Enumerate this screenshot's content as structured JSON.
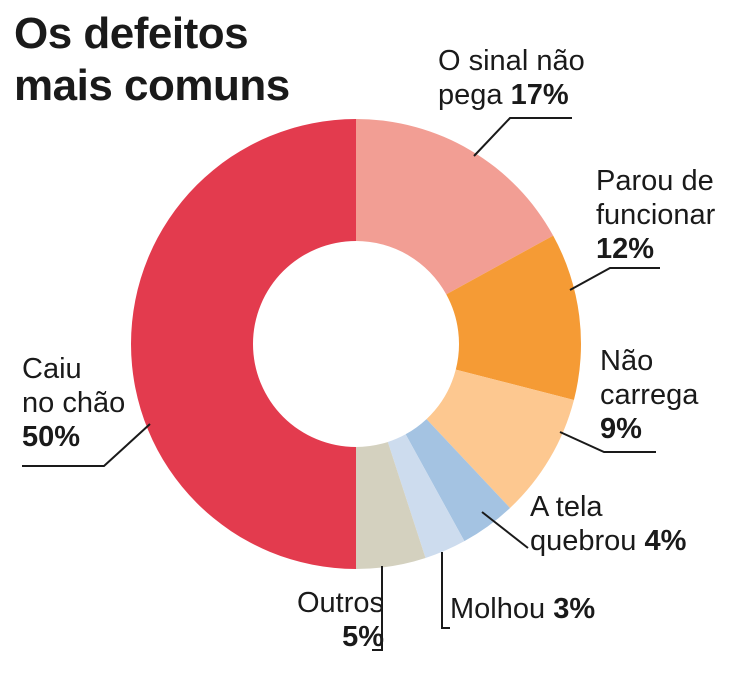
{
  "title_lines": [
    "Os defeitos",
    "mais comuns"
  ],
  "chart_data": {
    "type": "pie",
    "donut": true,
    "title": "Os defeitos mais comuns",
    "unit": "%",
    "slices": [
      {
        "label_lines": [
          "O sinal não",
          "pega"
        ],
        "value": 17,
        "value_label": "17%",
        "color": "#f29e94"
      },
      {
        "label_lines": [
          "Parou de",
          "funcionar"
        ],
        "value": 12,
        "value_label": "12%",
        "color": "#f59b35"
      },
      {
        "label_lines": [
          "Não",
          "carrega"
        ],
        "value": 9,
        "value_label": "9%",
        "color": "#fdc890"
      },
      {
        "label_lines": [
          "A tela",
          "quebrou"
        ],
        "value": 4,
        "value_label": "4%",
        "color": "#a4c3e2"
      },
      {
        "label_lines": [
          "Molhou"
        ],
        "value": 3,
        "value_label": "3%",
        "color": "#cddcee"
      },
      {
        "label_lines": [
          "Outros"
        ],
        "value": 5,
        "value_label": "5%",
        "color": "#d4d1bf"
      },
      {
        "label_lines": [
          "Caiu",
          "no chão"
        ],
        "value": 50,
        "value_label": "50%",
        "color": "#e33b4e"
      }
    ]
  }
}
